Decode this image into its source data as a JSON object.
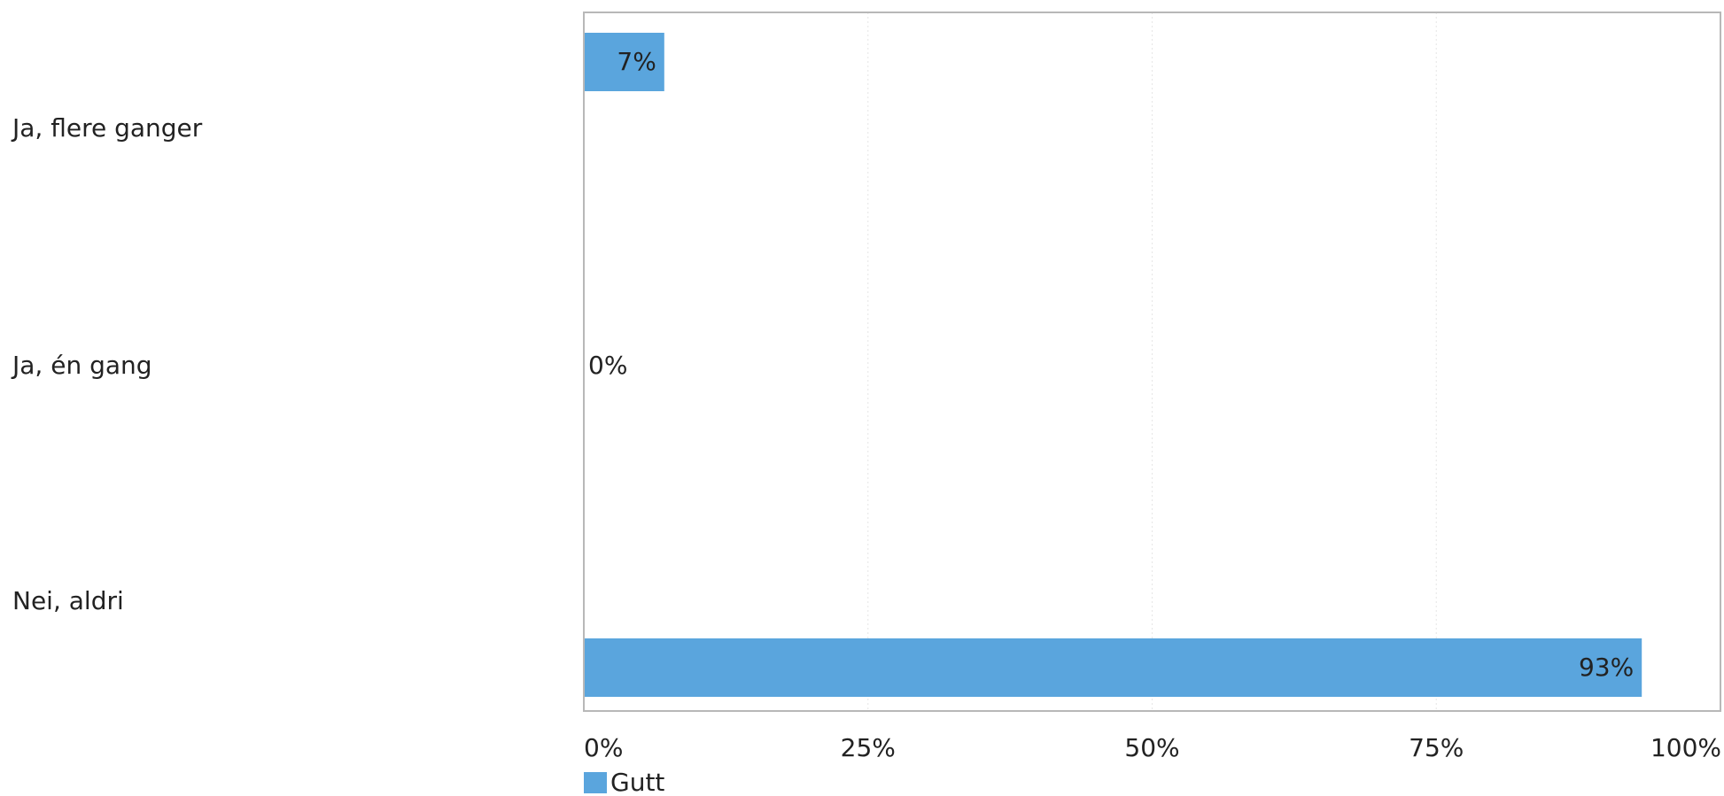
{
  "chart_data": {
    "type": "bar",
    "orientation": "horizontal",
    "categories": [
      "Ja, flere ganger",
      "Ja, én gang",
      "Nei, aldri"
    ],
    "series": [
      {
        "name": "Gutt",
        "color": "#5aa5dd",
        "values": [
          7,
          0,
          93
        ],
        "labels": [
          "7%",
          "0%",
          "93%"
        ]
      }
    ],
    "xlim": [
      0,
      100
    ],
    "xticks": [
      0,
      25,
      50,
      75,
      100
    ],
    "xtick_labels": [
      "0%",
      "25%",
      "50%",
      "75%",
      "100%"
    ],
    "grid": true,
    "legend": "bottom-left",
    "title": "",
    "xlabel": "",
    "ylabel": ""
  }
}
